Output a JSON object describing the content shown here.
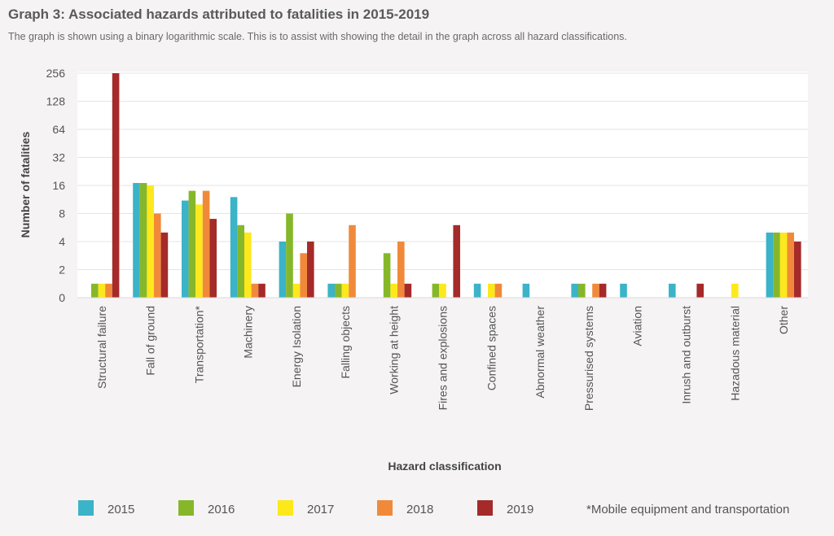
{
  "title": "Graph 3: Associated hazards attributed to fatalities in 2015-2019",
  "subtitle": "The graph is shown using a binary logarithmic scale. This is to assist with showing the detail in the graph across all hazard classifications.",
  "footnote": "*Mobile equipment and transportation",
  "colors": {
    "2015": "#3bb3c8",
    "2016": "#86b72a",
    "2017": "#fde81c",
    "2018": "#f08a3a",
    "2019": "#a52a2a",
    "plot_bg": "#ffffff",
    "page_bg": "#f5f3f4",
    "grid": "#e6e3e5"
  },
  "chart_data": {
    "type": "bar",
    "xlabel": "Hazard classification",
    "ylabel": "Number of fatalities",
    "y_scale": "log2",
    "ylim": [
      0,
      256
    ],
    "yticks": [
      "0",
      "2",
      "4",
      "8",
      "16",
      "32",
      "64",
      "128",
      "256"
    ],
    "grid": true,
    "legend_position": "bottom",
    "categories": [
      "Structural failure",
      "Fall of ground",
      "Transportation*",
      "Machinery",
      "Energy Isolation",
      "Falling objects",
      "Working at height",
      "Fires and explosions",
      "Confined spaces",
      "Abnormal weather",
      "Pressurised systems",
      "Aviation",
      "Inrush and outburst",
      "Hazadous material",
      "Other"
    ],
    "series": [
      {
        "name": "2015",
        "values": [
          0,
          17,
          11,
          12,
          4,
          1,
          0,
          0,
          1,
          1,
          1,
          1,
          1,
          0,
          5
        ]
      },
      {
        "name": "2016",
        "values": [
          1,
          17,
          14,
          6,
          8,
          1,
          3,
          1,
          0,
          0,
          1,
          0,
          0,
          0,
          5
        ]
      },
      {
        "name": "2017",
        "values": [
          1,
          16,
          10,
          5,
          1,
          1,
          1,
          1,
          1,
          0,
          0,
          0,
          0,
          1,
          5
        ]
      },
      {
        "name": "2018",
        "values": [
          1,
          8,
          14,
          1,
          3,
          6,
          4,
          0,
          1,
          0,
          1,
          0,
          0,
          0,
          5
        ]
      },
      {
        "name": "2019",
        "values": [
          256,
          5,
          7,
          1,
          4,
          0,
          1,
          6,
          0,
          0,
          1,
          0,
          1,
          0,
          4
        ]
      }
    ]
  }
}
